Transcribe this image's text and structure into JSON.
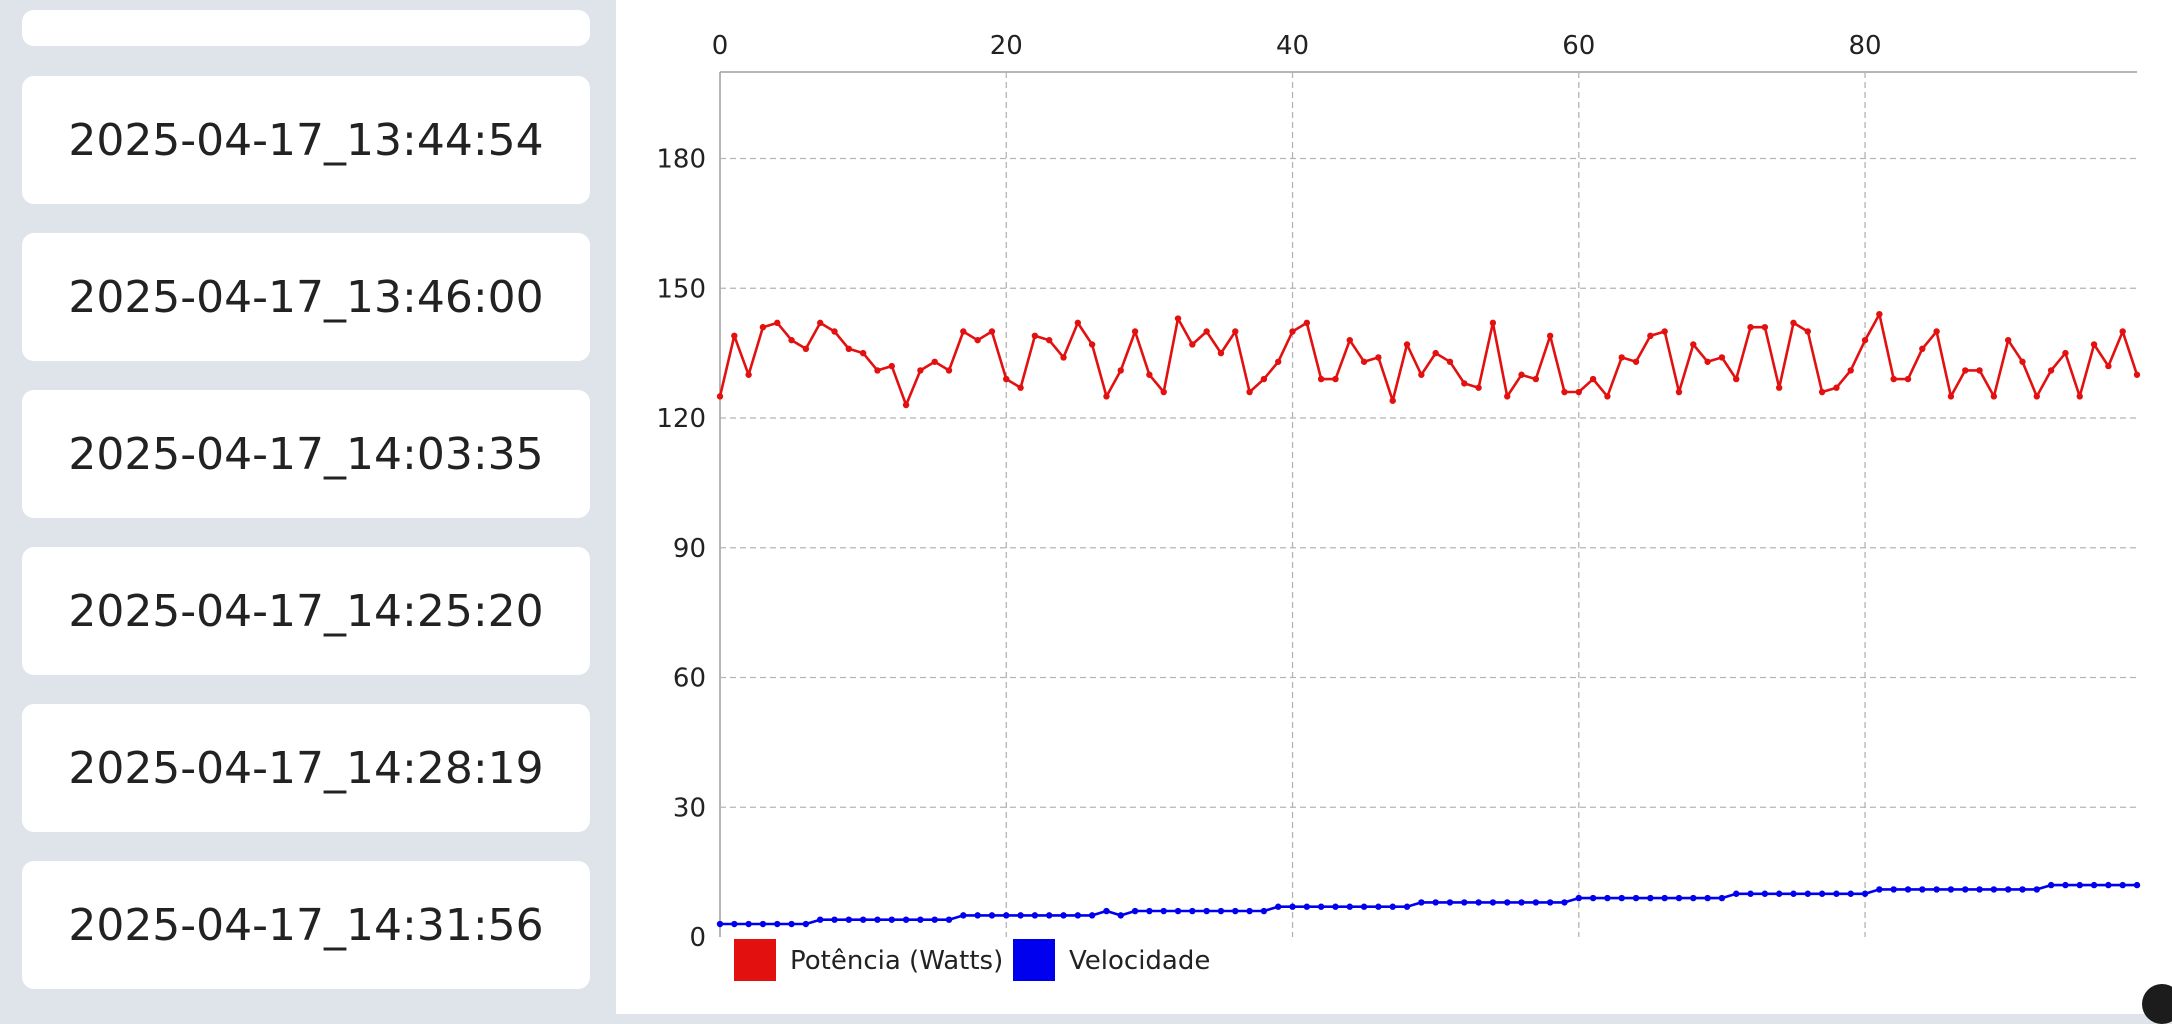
{
  "sessions": [
    {
      "label": ""
    },
    {
      "label": "2025-04-17_13:44:54"
    },
    {
      "label": "2025-04-17_13:46:00"
    },
    {
      "label": "2025-04-17_14:03:35"
    },
    {
      "label": "2025-04-17_14:25:20"
    },
    {
      "label": "2025-04-17_14:28:19"
    },
    {
      "label": "2025-04-17_14:31:56"
    }
  ],
  "colors": {
    "accent_top": "#5f4b8b",
    "power": "#e31010",
    "speed": "#0000ee",
    "sidebar_bg": "#dfe3ea"
  },
  "chart_data": {
    "type": "line",
    "x_ticks": [
      0,
      20,
      40,
      60,
      80
    ],
    "y_ticks": [
      0,
      30,
      60,
      90,
      120,
      150,
      180
    ],
    "xlim": [
      0,
      99
    ],
    "ylim": [
      0,
      200
    ],
    "x_axis_position": "top",
    "grid": true,
    "legend_position": "bottom-left",
    "series": [
      {
        "name": "Potência (Watts)",
        "color": "#e31010",
        "values": [
          125,
          139,
          130,
          141,
          142,
          138,
          136,
          142,
          140,
          136,
          135,
          131,
          132,
          123,
          131,
          133,
          131,
          140,
          138,
          140,
          129,
          127,
          139,
          138,
          134,
          142,
          137,
          125,
          131,
          140,
          130,
          126,
          143,
          137,
          140,
          135,
          140,
          126,
          129,
          133,
          140,
          142,
          129,
          129,
          138,
          133,
          134,
          124,
          137,
          130,
          135,
          133,
          128,
          127,
          142,
          125,
          130,
          129,
          139,
          126,
          126,
          129,
          125,
          134,
          133,
          139,
          140,
          126,
          137,
          133,
          134,
          129,
          141,
          141,
          127,
          142,
          140,
          126,
          127,
          131,
          138,
          144,
          129,
          129,
          136,
          140,
          125,
          131,
          131,
          125,
          138,
          133,
          125,
          131,
          135,
          125,
          137,
          132,
          140,
          130
        ]
      },
      {
        "name": "Velocidade",
        "color": "#0000ee",
        "values": [
          3,
          3,
          3,
          3,
          3,
          3,
          3,
          4,
          4,
          4,
          4,
          4,
          4,
          4,
          4,
          4,
          4,
          5,
          5,
          5,
          5,
          5,
          5,
          5,
          5,
          5,
          5,
          6,
          5,
          6,
          6,
          6,
          6,
          6,
          6,
          6,
          6,
          6,
          6,
          7,
          7,
          7,
          7,
          7,
          7,
          7,
          7,
          7,
          7,
          8,
          8,
          8,
          8,
          8,
          8,
          8,
          8,
          8,
          8,
          8,
          9,
          9,
          9,
          9,
          9,
          9,
          9,
          9,
          9,
          9,
          9,
          10,
          10,
          10,
          10,
          10,
          10,
          10,
          10,
          10,
          10,
          11,
          11,
          11,
          11,
          11,
          11,
          11,
          11,
          11,
          11,
          11,
          11,
          12,
          12,
          12,
          12,
          12,
          12,
          12
        ]
      }
    ]
  }
}
